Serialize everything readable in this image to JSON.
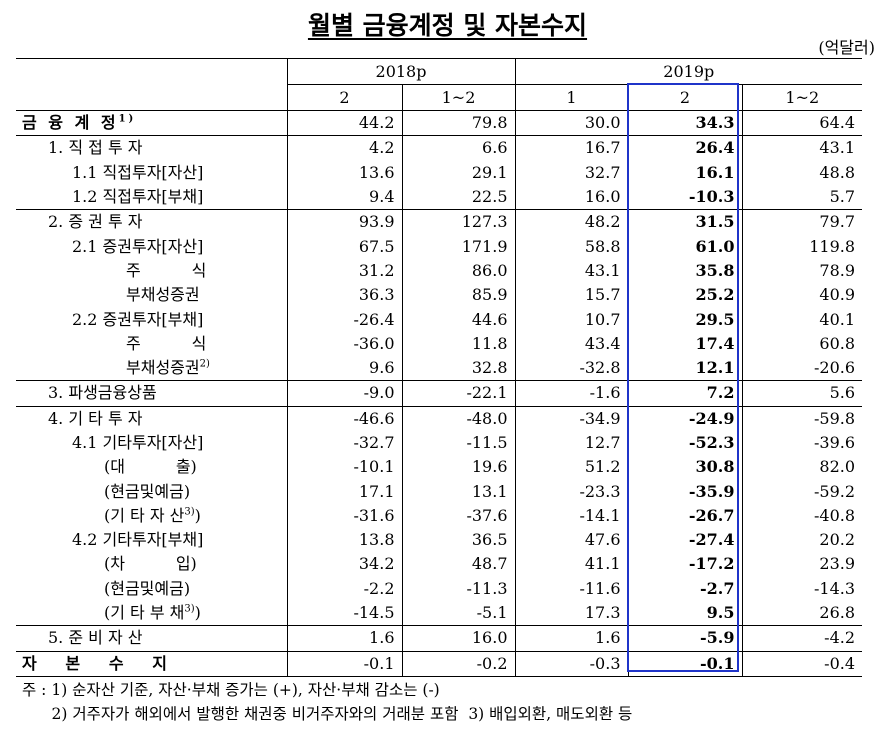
{
  "title": "월별 금융계정 및 자본수지",
  "unit": "(억달러)",
  "header": {
    "year1": "2018p",
    "year2": "2019p",
    "months": [
      "2",
      "1~2",
      "1",
      "2",
      "1~2"
    ]
  },
  "rows": [
    {
      "label": "금 융 계 정",
      "sup": "1)",
      "cls": "l0",
      "sep": true,
      "v": [
        "44.2",
        "79.8",
        "30.0",
        "34.3",
        "64.4"
      ]
    },
    {
      "label": "1. 직 접 투 자",
      "sup": "",
      "cls": "l1",
      "sep": true,
      "v": [
        "4.2",
        "6.6",
        "16.7",
        "26.4",
        "43.1"
      ]
    },
    {
      "label": "1.1 직접투자[자산]",
      "sup": "",
      "cls": "l2",
      "v": [
        "13.6",
        "29.1",
        "32.7",
        "16.1",
        "48.8"
      ]
    },
    {
      "label": "1.2 직접투자[부채]",
      "sup": "",
      "cls": "l2",
      "v": [
        "9.4",
        "22.5",
        "16.0",
        "-10.3",
        "5.7"
      ]
    },
    {
      "label": "2. 증 권 투 자",
      "sup": "",
      "cls": "l1",
      "sep": true,
      "v": [
        "93.9",
        "127.3",
        "48.2",
        "31.5",
        "79.7"
      ]
    },
    {
      "label": "2.1 증권투자[자산]",
      "sup": "",
      "cls": "l2",
      "v": [
        "67.5",
        "171.9",
        "58.8",
        "61.0",
        "119.8"
      ]
    },
    {
      "label": "주          식",
      "sup": "",
      "cls": "l3",
      "v": [
        "31.2",
        "86.0",
        "43.1",
        "35.8",
        "78.9"
      ]
    },
    {
      "label": "부채성증권",
      "sup": "",
      "cls": "l3",
      "v": [
        "36.3",
        "85.9",
        "15.7",
        "25.2",
        "40.9"
      ]
    },
    {
      "label": "2.2 증권투자[부채]",
      "sup": "",
      "cls": "l2",
      "v": [
        "-26.4",
        "44.6",
        "10.7",
        "29.5",
        "40.1"
      ]
    },
    {
      "label": "주          식",
      "sup": "",
      "cls": "l3",
      "v": [
        "-36.0",
        "11.8",
        "43.4",
        "17.4",
        "60.8"
      ]
    },
    {
      "label": "부채성증권",
      "sup": "2)",
      "cls": "l3",
      "v": [
        "9.6",
        "32.8",
        "-32.8",
        "12.1",
        "-20.6"
      ]
    },
    {
      "label": "3. 파생금융상품",
      "sup": "",
      "cls": "l1",
      "sep": true,
      "v": [
        "-9.0",
        "-22.1",
        "-1.6",
        "7.2",
        "5.6"
      ]
    },
    {
      "label": "4. 기 타 투 자",
      "sup": "",
      "cls": "l1",
      "sep": true,
      "v": [
        "-46.6",
        "-48.0",
        "-34.9",
        "-24.9",
        "-59.8"
      ]
    },
    {
      "label": "4.1 기타투자[자산]",
      "sup": "",
      "cls": "l2",
      "v": [
        "-32.7",
        "-11.5",
        "12.7",
        "-52.3",
        "-39.6"
      ]
    },
    {
      "label": "(대          출)",
      "sup": "",
      "cls": "l4",
      "v": [
        "-10.1",
        "19.6",
        "51.2",
        "30.8",
        "82.0"
      ]
    },
    {
      "label": "(현금및예금)",
      "sup": "",
      "cls": "l4",
      "v": [
        "17.1",
        "13.1",
        "-23.3",
        "-35.9",
        "-59.2"
      ]
    },
    {
      "label": "(기 타 자 산",
      "sup": "3)",
      "tail": ")",
      "cls": "l4",
      "v": [
        "-31.6",
        "-37.6",
        "-14.1",
        "-26.7",
        "-40.8"
      ]
    },
    {
      "label": "4.2 기타투자[부채]",
      "sup": "",
      "cls": "l2",
      "v": [
        "13.8",
        "36.5",
        "47.6",
        "-27.4",
        "20.2"
      ]
    },
    {
      "label": "(차          입)",
      "sup": "",
      "cls": "l4",
      "v": [
        "34.2",
        "48.7",
        "41.1",
        "-17.2",
        "23.9"
      ]
    },
    {
      "label": "(현금및예금)",
      "sup": "",
      "cls": "l4",
      "v": [
        "-2.2",
        "-11.3",
        "-11.6",
        "-2.7",
        "-14.3"
      ]
    },
    {
      "label": "(기 타 부 채",
      "sup": "3)",
      "tail": ")",
      "cls": "l4",
      "v": [
        "-14.5",
        "-5.1",
        "17.3",
        "9.5",
        "26.8"
      ]
    },
    {
      "label": "5. 준 비 자 산",
      "sup": "",
      "cls": "l1",
      "sep": true,
      "v": [
        "1.6",
        "16.0",
        "1.6",
        "-5.9",
        "-4.2"
      ]
    },
    {
      "label": "자   본   수   지",
      "sup": "",
      "cls": "l0",
      "sep": true,
      "last": true,
      "v": [
        "-0.1",
        "-0.2",
        "-0.3",
        "-0.1",
        "-0.4"
      ]
    }
  ],
  "notes": [
    "주 : 1) 순자산 기준, 자산·부채 증가는 (+), 자산·부채 감소는 (-)",
    "      2) 거주자가 해외에서 발행한 채권중 비거주자와의 거래분 포함  3) 배입외환, 매도외환 등"
  ],
  "highlight_color": "#1f34c9"
}
